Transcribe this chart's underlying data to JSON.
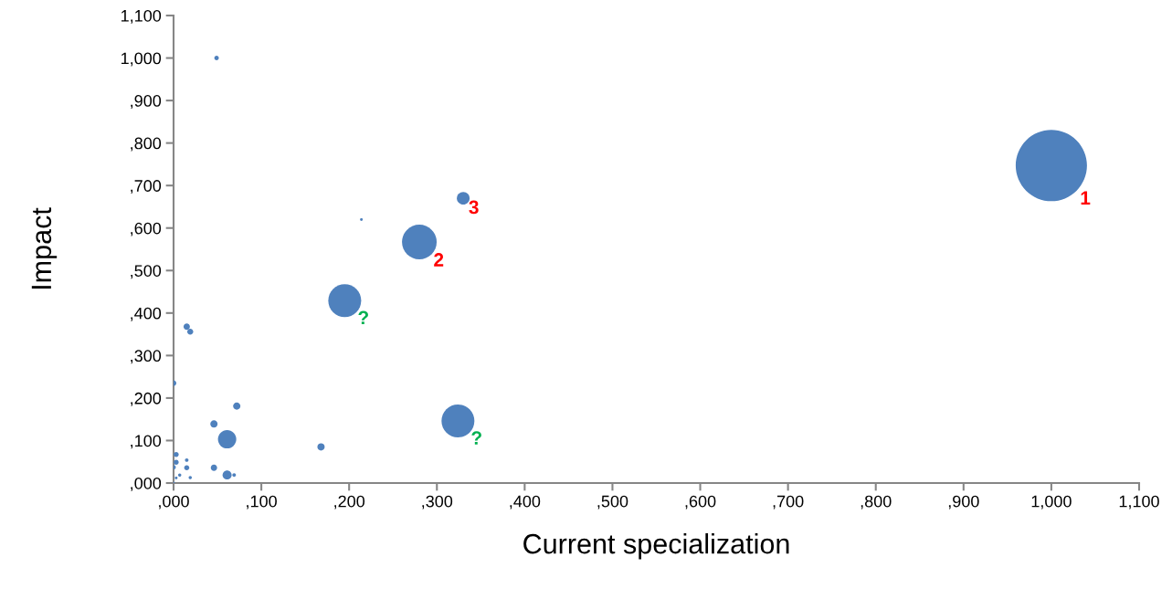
{
  "chart_data": {
    "type": "bubble",
    "xlabel": "Current specialization",
    "ylabel": "Impact",
    "xlim": [
      0,
      1100
    ],
    "ylim": [
      0,
      1100
    ],
    "xticks": [
      {
        "value": 0,
        "label": ",000"
      },
      {
        "value": 100,
        "label": ",100"
      },
      {
        "value": 200,
        "label": ",200"
      },
      {
        "value": 300,
        "label": ",300"
      },
      {
        "value": 400,
        "label": ",400"
      },
      {
        "value": 500,
        "label": ",500"
      },
      {
        "value": 600,
        "label": ",600"
      },
      {
        "value": 700,
        "label": ",700"
      },
      {
        "value": 800,
        "label": ",800"
      },
      {
        "value": 900,
        "label": ",900"
      },
      {
        "value": 1000,
        "label": "1,000"
      },
      {
        "value": 1100,
        "label": "1,100"
      }
    ],
    "yticks": [
      {
        "value": 0,
        "label": ",000"
      },
      {
        "value": 100,
        "label": ",100"
      },
      {
        "value": 200,
        "label": ",200"
      },
      {
        "value": 300,
        "label": ",300"
      },
      {
        "value": 400,
        "label": ",400"
      },
      {
        "value": 500,
        "label": ",500"
      },
      {
        "value": 600,
        "label": ",600"
      },
      {
        "value": 700,
        "label": ",700"
      },
      {
        "value": 800,
        "label": ",800"
      },
      {
        "value": 900,
        "label": ",900"
      },
      {
        "value": 1000,
        "label": "1,000"
      },
      {
        "value": 1100,
        "label": "1,100"
      }
    ],
    "series": [
      {
        "color": "#4f81bd",
        "x": [
          1000,
          280,
          330,
          195,
          324,
          49,
          214,
          15,
          19,
          0,
          72,
          46,
          61,
          168,
          3,
          3,
          0,
          15,
          15,
          46,
          61,
          69,
          7,
          3,
          19,
          0
        ],
        "values": [
          747,
          567,
          670,
          429,
          146,
          1000,
          620,
          368,
          356,
          235,
          181,
          139,
          103,
          85,
          67,
          49,
          37,
          54,
          36,
          36,
          19,
          19,
          19,
          12,
          13,
          0
        ],
        "sizes": [
          1,
          0.237,
          0.032,
          0.213,
          0.213,
          0.004,
          0.0015,
          0.008,
          0.007,
          0.006,
          0.0105,
          0.0105,
          0.066,
          0.0105,
          0.005,
          0.005,
          0.004,
          0.0026,
          0.005,
          0.008,
          0.016,
          0.0026,
          0.002,
          0.0015,
          0.002,
          0.0015
        ]
      }
    ],
    "annotations": [
      {
        "text": "1",
        "x": 1000,
        "y": 747
      },
      {
        "text": "2",
        "x": 280,
        "y": 567
      },
      {
        "text": "3",
        "x": 330,
        "y": 670
      },
      {
        "text": "?",
        "x": 195,
        "y": 429
      },
      {
        "text": "?",
        "x": 324,
        "y": 146
      }
    ]
  }
}
